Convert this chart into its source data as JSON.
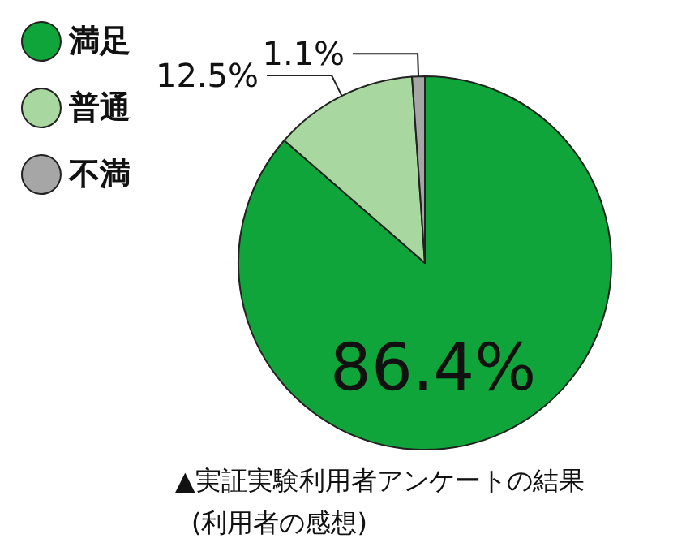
{
  "chart_data": {
    "type": "pie",
    "categories": [
      "満足",
      "普通",
      "不満"
    ],
    "values": [
      86.4,
      12.5,
      1.1
    ],
    "colors": [
      "#0fa53a",
      "#a8d8a0",
      "#a6a6a6"
    ],
    "value_labels": [
      "86.4%",
      "12.5%",
      "1.1%"
    ],
    "legend": "top left",
    "annotations": [
      "▲実証実験利用者アンケートの結果",
      "(利用者の感想)"
    ]
  }
}
